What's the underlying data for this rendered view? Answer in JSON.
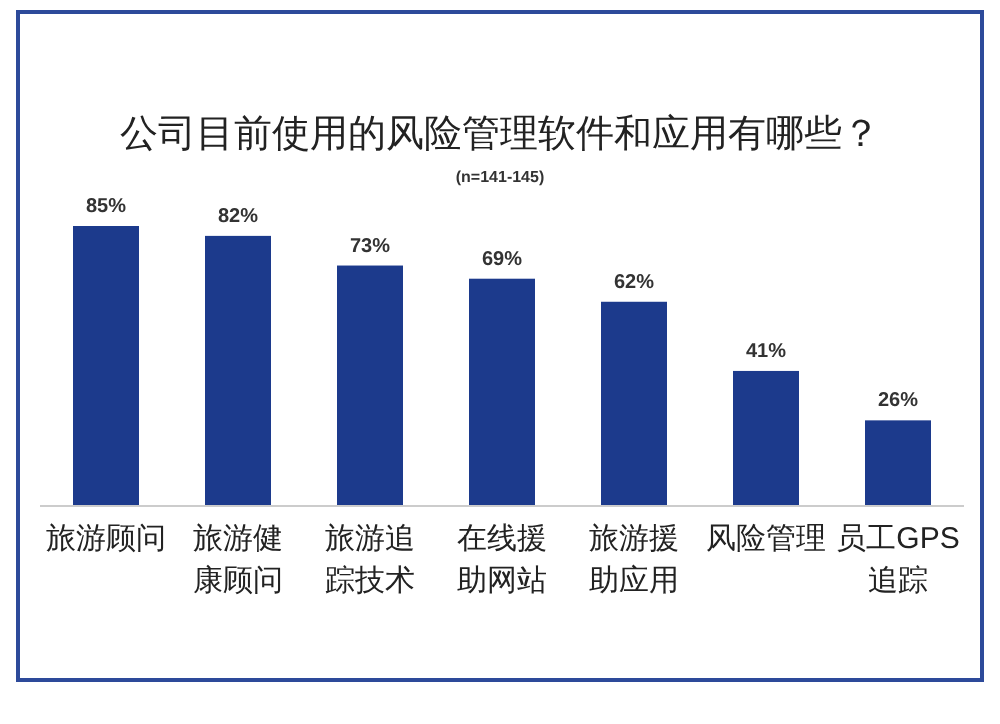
{
  "chart_data": {
    "type": "bar",
    "title": "公司目前使用的风险管理软件和应用有哪些？",
    "subtitle": "(n=141-145)",
    "categories": [
      "旅游顾问",
      "旅游健康顾问",
      "旅游追踪技术",
      "在线援助网站",
      "旅游援助应用",
      "风险管理",
      "员工GPS追踪"
    ],
    "values": [
      85,
      82,
      73,
      69,
      62,
      41,
      26
    ],
    "value_labels": [
      "85%",
      "82%",
      "73%",
      "69%",
      "62%",
      "41%",
      "26%"
    ],
    "color": "#1c3a8c"
  }
}
